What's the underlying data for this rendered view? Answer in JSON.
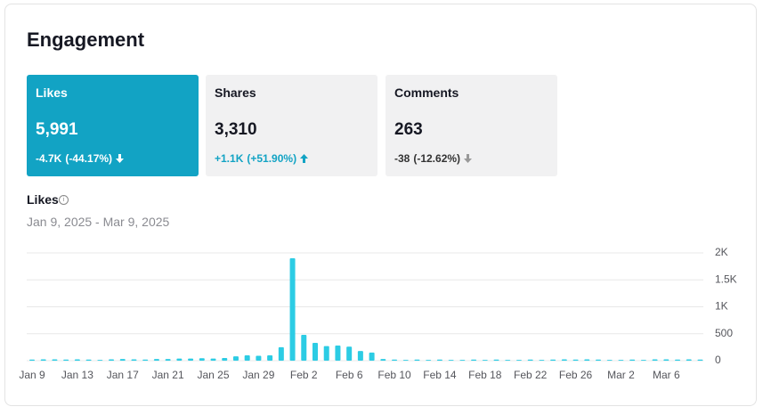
{
  "header": {
    "title": "Engagement"
  },
  "cards": [
    {
      "label": "Likes",
      "value": "5,991",
      "change": "-4.7K",
      "percent": "(-44.17%)"
    },
    {
      "label": "Shares",
      "value": "3,310",
      "change": "+1.1K",
      "percent": "(+51.90%)"
    },
    {
      "label": "Comments",
      "value": "263",
      "change": "-38",
      "percent": "(-12.62%)"
    }
  ],
  "chart_data": {
    "type": "bar",
    "title": "Likes",
    "subtitle": "Jan 9, 2025 - Mar 9, 2025",
    "color": "#2ccce4",
    "grid": true,
    "categories": [
      "Jan 9",
      null,
      null,
      null,
      "Jan 13",
      null,
      null,
      null,
      "Jan 17",
      null,
      null,
      null,
      "Jan 21",
      null,
      null,
      null,
      "Jan 25",
      null,
      null,
      null,
      "Jan 29",
      null,
      null,
      null,
      "Feb 2",
      null,
      null,
      null,
      "Feb 6",
      null,
      null,
      null,
      "Feb 10",
      null,
      null,
      null,
      "Feb 14",
      null,
      null,
      null,
      "Feb 18",
      null,
      null,
      null,
      "Feb 22",
      null,
      null,
      null,
      "Feb 26",
      null,
      null,
      null,
      "Mar 2",
      null,
      null,
      null,
      "Mar 6",
      null,
      null,
      null
    ],
    "values": [
      20,
      25,
      25,
      20,
      25,
      20,
      15,
      25,
      30,
      25,
      20,
      30,
      30,
      40,
      40,
      45,
      40,
      50,
      80,
      100,
      90,
      100,
      250,
      1900,
      480,
      330,
      270,
      280,
      260,
      180,
      150,
      30,
      20,
      15,
      20,
      15,
      20,
      15,
      15,
      20,
      15,
      20,
      15,
      15,
      20,
      15,
      20,
      25,
      20,
      25,
      20,
      15,
      15,
      20,
      15,
      25,
      25,
      20,
      25,
      20
    ],
    "ylim": [
      0,
      2000
    ],
    "yticks": [
      0,
      500,
      {
        "value": 1000,
        "label": "1K"
      },
      {
        "value": 1500,
        "label": "1.5K"
      },
      {
        "value": 2000,
        "label": "2K"
      }
    ]
  }
}
